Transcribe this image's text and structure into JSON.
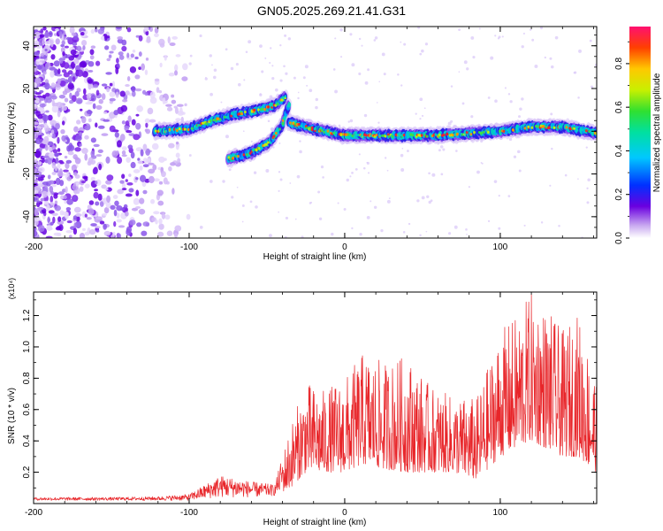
{
  "title": "GN05.2025.269.21.41.G31",
  "colors": {
    "snr_line": "#e8262a",
    "axis": "#000000",
    "scatter_purple": "#7a22e8"
  },
  "chart_data": [
    {
      "type": "heatmap",
      "title": "GN05.2025.269.21.41.G31",
      "xlabel": "Height of straight line (km)",
      "ylabel": "Frequency (Hz)",
      "xlim": [
        -200,
        162
      ],
      "ylim": [
        -50,
        49
      ],
      "x_ticks": [
        "-200",
        "-100",
        "0",
        "100"
      ],
      "y_ticks": [
        "-40",
        "-20",
        "0",
        "20",
        "40"
      ],
      "colorbar": {
        "label": "Normalized spectral amplitude",
        "range": [
          0,
          0.97
        ],
        "ticks": [
          "0.0",
          "0.2",
          "0.4",
          "0.6",
          "0.8"
        ]
      },
      "ridges": [
        {
          "name": "upper branch",
          "points": [
            [
              -122,
              0
            ],
            [
              -100,
              1
            ],
            [
              -85,
              5
            ],
            [
              -70,
              8
            ],
            [
              -55,
              10
            ],
            [
              -45,
              12
            ],
            [
              -38,
              16
            ]
          ]
        },
        {
          "name": "lower branch",
          "points": [
            [
              -75,
              -13
            ],
            [
              -60,
              -10
            ],
            [
              -48,
              -5
            ],
            [
              -40,
              3
            ],
            [
              -36,
              12
            ]
          ]
        },
        {
          "name": "main trace",
          "points": [
            [
              -36,
              4
            ],
            [
              -20,
              1
            ],
            [
              0,
              -2
            ],
            [
              20,
              -2
            ],
            [
              40,
              -2
            ],
            [
              60,
              -2
            ],
            [
              80,
              -1
            ],
            [
              100,
              0
            ],
            [
              120,
              2
            ],
            [
              140,
              2
            ],
            [
              162,
              -1
            ]
          ]
        }
      ]
    },
    {
      "type": "line",
      "xlabel": "Height of straight line (km)",
      "ylabel": "SNR (10 * v/v)",
      "y_multiplier": "(x10⁴)",
      "xlim": [
        -200,
        162
      ],
      "ylim": [
        0,
        1.35
      ],
      "x_ticks": [
        "-200",
        "-100",
        "0",
        "100"
      ],
      "y_ticks": [
        "0.2",
        "0.4",
        "0.6",
        "0.8",
        "1.0",
        "1.2"
      ],
      "envelope": [
        [
          -200,
          0.02,
          0.04
        ],
        [
          -150,
          0.02,
          0.04
        ],
        [
          -120,
          0.02,
          0.045
        ],
        [
          -100,
          0.02,
          0.06
        ],
        [
          -90,
          0.03,
          0.12
        ],
        [
          -80,
          0.04,
          0.18
        ],
        [
          -60,
          0.04,
          0.14
        ],
        [
          -45,
          0.05,
          0.12
        ],
        [
          -35,
          0.1,
          0.5
        ],
        [
          -25,
          0.2,
          0.78
        ],
        [
          -15,
          0.2,
          0.72
        ],
        [
          0,
          0.2,
          0.8
        ],
        [
          12,
          0.25,
          0.97
        ],
        [
          25,
          0.22,
          0.9
        ],
        [
          40,
          0.2,
          0.95
        ],
        [
          55,
          0.2,
          0.75
        ],
        [
          70,
          0.2,
          0.68
        ],
        [
          85,
          0.15,
          0.68
        ],
        [
          100,
          0.3,
          1.1
        ],
        [
          110,
          0.35,
          1.2
        ],
        [
          120,
          0.4,
          1.35
        ],
        [
          130,
          0.35,
          1.25
        ],
        [
          140,
          0.3,
          1.1
        ],
        [
          150,
          0.3,
          1.22
        ],
        [
          162,
          0.2,
          0.8
        ]
      ],
      "series": [
        {
          "color": "#e8262a"
        }
      ]
    }
  ]
}
